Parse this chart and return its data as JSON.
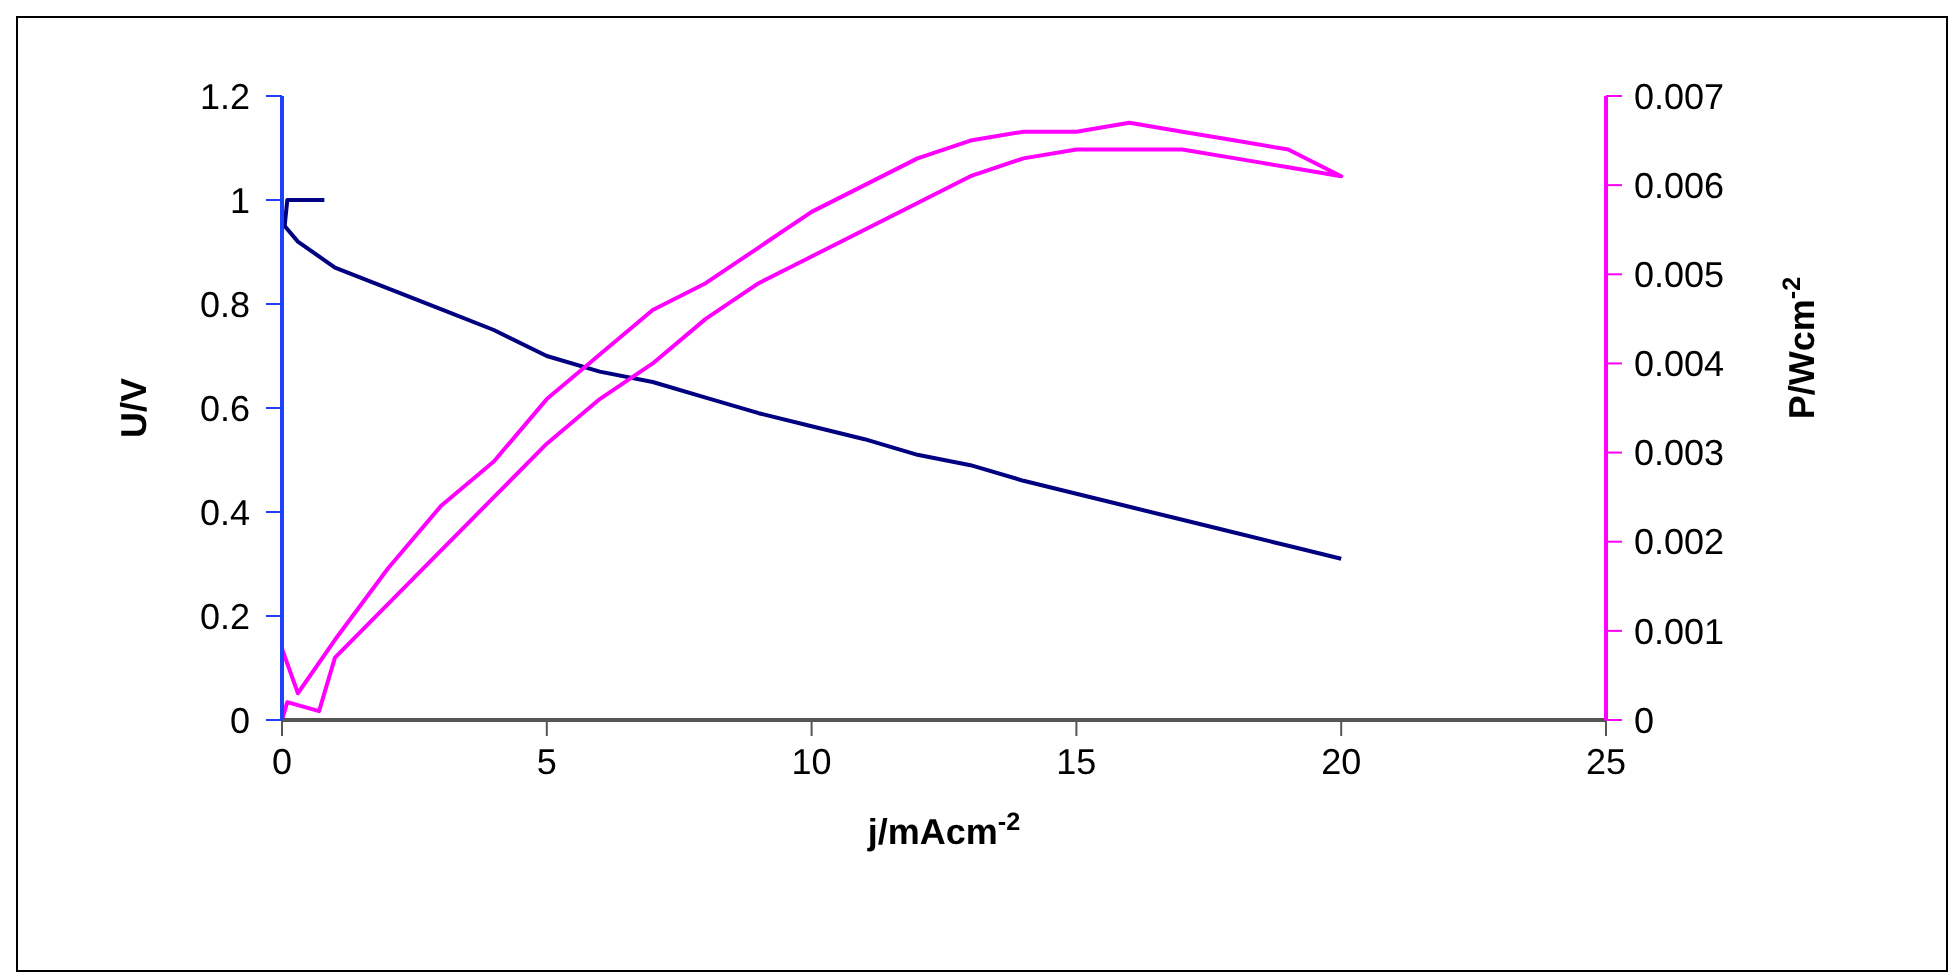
{
  "chart_data": {
    "type": "line",
    "xlabel": "j/mAcm$^{-2}$",
    "ylabel": "U/V",
    "y2label": "P/Wcm$^{-2}$",
    "xlim": [
      0,
      25
    ],
    "xticks": [
      0,
      5,
      10,
      15,
      20,
      25
    ],
    "ylim": [
      0,
      1.2
    ],
    "yticks": [
      0,
      0.2,
      0.4,
      0.6,
      0.8,
      1,
      1.2
    ],
    "y2lim": [
      0,
      0.007
    ],
    "y2ticks": [
      0,
      0.001,
      0.002,
      0.003,
      0.004,
      0.005,
      0.006,
      0.007
    ],
    "marker": "none",
    "line_style": "solid",
    "series": [
      {
        "color": "#000080",
        "x": [
          0.8,
          0.1,
          0.05,
          0.3,
          1,
          2,
          3,
          4,
          5,
          6,
          7,
          8,
          9,
          10,
          11,
          12,
          13,
          14,
          15,
          16,
          17,
          18,
          19,
          20
        ],
        "values": [
          1.0,
          1.0,
          0.95,
          0.92,
          0.87,
          0.83,
          0.79,
          0.75,
          0.7,
          0.67,
          0.65,
          0.62,
          0.59,
          0.565,
          0.54,
          0.51,
          0.49,
          0.46,
          0.435,
          0.41,
          0.385,
          0.36,
          0.335,
          0.31
        ]
      },
      {
        "color": "#ff00ff",
        "axis": "y2",
        "x": [
          0,
          0.3,
          1,
          2,
          3,
          4,
          5,
          6,
          7,
          8,
          9,
          10,
          11,
          12,
          13,
          14,
          15,
          16,
          17,
          18,
          19,
          20,
          19,
          18,
          17,
          16,
          15,
          14,
          13,
          12,
          11,
          10,
          9,
          8,
          7,
          6,
          5,
          4,
          3,
          2,
          1,
          0.7,
          0.1,
          0
        ],
        "values": [
          0.0008,
          0.0003,
          0.0009,
          0.0017,
          0.0024,
          0.0029,
          0.0036,
          0.0041,
          0.0046,
          0.0049,
          0.0053,
          0.0057,
          0.006,
          0.0063,
          0.0065,
          0.0066,
          0.0066,
          0.0067,
          0.0066,
          0.0065,
          0.0064,
          0.0061,
          0.0062,
          0.0063,
          0.0064,
          0.0064,
          0.0064,
          0.0063,
          0.0061,
          0.0058,
          0.0055,
          0.0052,
          0.0049,
          0.0045,
          0.004,
          0.0036,
          0.0031,
          0.0025,
          0.0019,
          0.0013,
          0.0007,
          0.0001,
          0.0002,
          0
        ]
      }
    ]
  }
}
